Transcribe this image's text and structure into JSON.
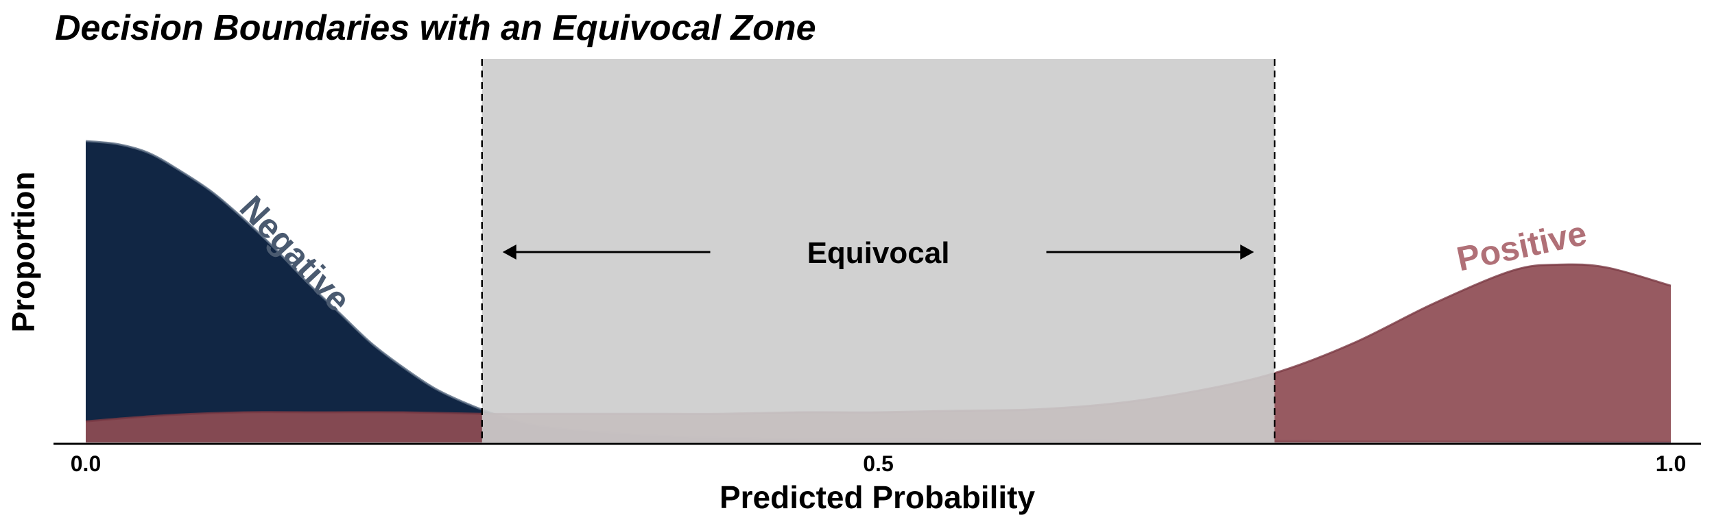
{
  "chart_data": {
    "type": "area",
    "title": "Decision Boundaries with an Equivocal Zone",
    "xlabel": "Predicted Probability",
    "ylabel": "Proportion",
    "xlim": [
      0,
      1
    ],
    "ylim": [
      0,
      1.1
    ],
    "x_ticks": [
      {
        "value": 0.0,
        "label": "0.0"
      },
      {
        "value": 0.5,
        "label": "0.5"
      },
      {
        "value": 1.0,
        "label": "1.0"
      }
    ],
    "y_ticks": [],
    "grid": false,
    "legend": "none",
    "equivocal_zone": {
      "x_start": 0.25,
      "x_end": 0.75,
      "label": "Equivocal",
      "color": "#cccccc"
    },
    "series": [
      {
        "name": "Negative",
        "color": "#112644",
        "label_color": "#4a5a70",
        "x": [
          0.0,
          0.02,
          0.04,
          0.06,
          0.08,
          0.1,
          0.12,
          0.14,
          0.16,
          0.18,
          0.2,
          0.22,
          0.24,
          0.26,
          0.28,
          0.3,
          0.32,
          0.34,
          0.36,
          0.38,
          0.4,
          0.45,
          0.5,
          0.6,
          0.7,
          0.8,
          0.9,
          1.0
        ],
        "y": [
          1.0,
          0.99,
          0.96,
          0.9,
          0.83,
          0.74,
          0.64,
          0.53,
          0.43,
          0.33,
          0.25,
          0.18,
          0.13,
          0.09,
          0.06,
          0.045,
          0.035,
          0.028,
          0.022,
          0.018,
          0.015,
          0.011,
          0.009,
          0.007,
          0.005,
          0.004,
          0.003,
          0.002
        ]
      },
      {
        "name": "Positive",
        "color": "#8e4c54",
        "label_color": "#b07077",
        "x": [
          0.0,
          0.05,
          0.1,
          0.15,
          0.2,
          0.25,
          0.3,
          0.35,
          0.4,
          0.45,
          0.5,
          0.55,
          0.6,
          0.65,
          0.7,
          0.75,
          0.8,
          0.85,
          0.9,
          0.93,
          0.96,
          1.0
        ],
        "y": [
          0.07,
          0.09,
          0.1,
          0.1,
          0.1,
          0.095,
          0.095,
          0.095,
          0.095,
          0.1,
          0.1,
          0.105,
          0.11,
          0.13,
          0.17,
          0.23,
          0.33,
          0.46,
          0.57,
          0.59,
          0.58,
          0.52
        ]
      }
    ]
  }
}
